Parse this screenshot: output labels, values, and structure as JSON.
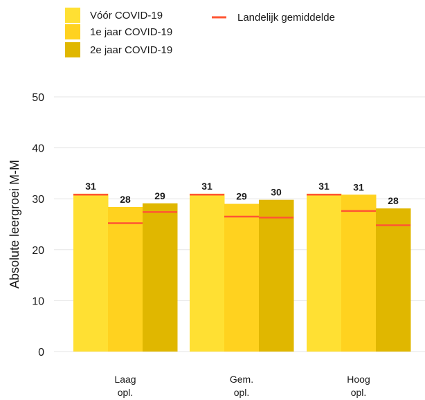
{
  "chart_data": {
    "type": "bar",
    "title": "",
    "xlabel": "",
    "ylabel": "Absolute leergroei M-M",
    "ylim": [
      0,
      50
    ],
    "yticks": [
      0,
      10,
      20,
      30,
      40,
      50
    ],
    "grid": true,
    "legend_position": "top-left",
    "categories": [
      [
        "Laag",
        "opl."
      ],
      [
        "Gem.",
        "opl."
      ],
      [
        "Hoog",
        "opl."
      ]
    ],
    "series": [
      {
        "name": "Vóór COVID-19",
        "color": "#FFE033",
        "values": [
          31,
          31,
          31
        ],
        "data_labels": [
          "31",
          "31",
          "31"
        ],
        "landelijk_gemiddelde": [
          30.8,
          30.8,
          30.8
        ]
      },
      {
        "name": "1e jaar COVID-19",
        "color": "#FFD21F",
        "values": [
          28.4,
          29,
          30.8
        ],
        "data_labels": [
          "28",
          "29",
          "31"
        ],
        "landelijk_gemiddelde": [
          25.2,
          26.5,
          27.6
        ]
      },
      {
        "name": "2e jaar COVID-19",
        "color": "#E0B700",
        "values": [
          29.1,
          29.8,
          28.1
        ],
        "data_labels": [
          "29",
          "30",
          "28"
        ],
        "landelijk_gemiddelde": [
          27.4,
          26.3,
          24.8
        ]
      }
    ],
    "reference_line": {
      "name": "Landelijk gemiddelde",
      "color": "#FF5533"
    }
  }
}
